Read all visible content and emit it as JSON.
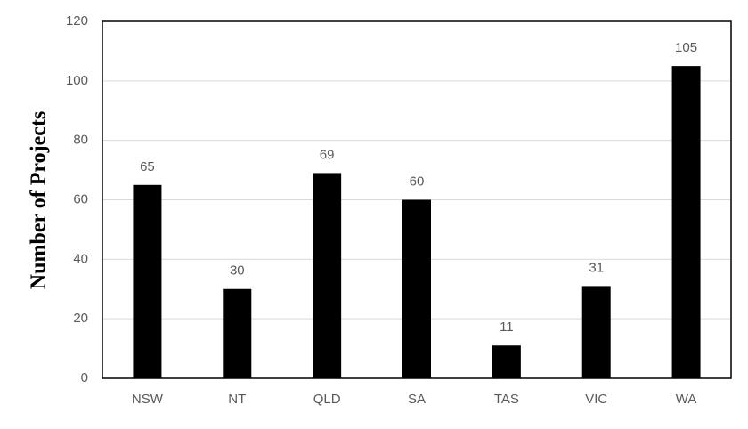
{
  "chart_data": {
    "type": "bar",
    "y_label": "Number of Projects",
    "categories": [
      "NSW",
      "NT",
      "QLD",
      "SA",
      "TAS",
      "VIC",
      "WA"
    ],
    "values": [
      65,
      30,
      69,
      60,
      11,
      31,
      105
    ],
    "color": "#000000",
    "ylim": [
      0,
      120
    ],
    "yticks": [
      0,
      20,
      40,
      60,
      80,
      100,
      120
    ],
    "grid": true,
    "data_labels": true
  }
}
